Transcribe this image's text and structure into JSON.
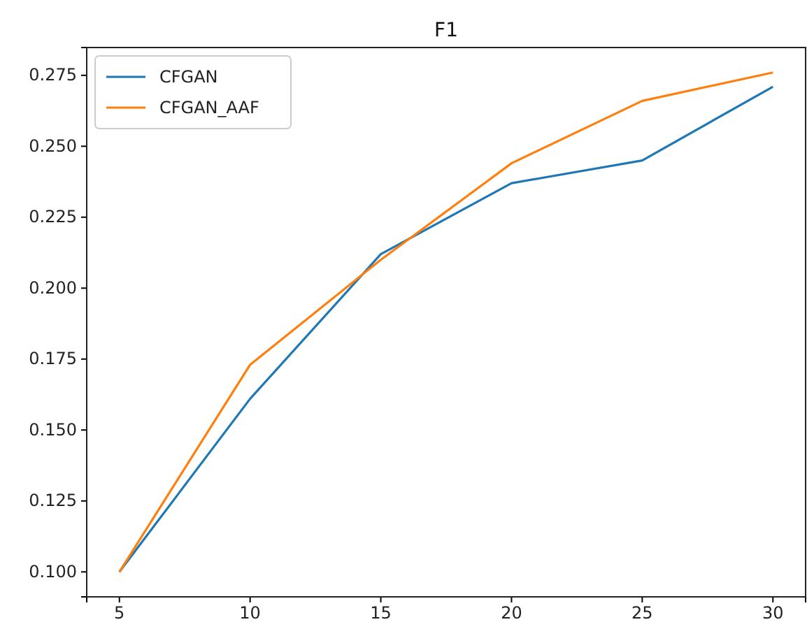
{
  "chart_data": {
    "type": "line",
    "title": "F1",
    "x": [
      5,
      10,
      15,
      20,
      25,
      30
    ],
    "series": [
      {
        "name": "CFGAN",
        "color": "#1f77b4",
        "values": [
          0.1,
          0.161,
          0.212,
          0.237,
          0.245,
          0.271
        ]
      },
      {
        "name": "CFGAN_AAF",
        "color": "#ff7f0e",
        "values": [
          0.1,
          0.173,
          0.21,
          0.244,
          0.266,
          0.276
        ]
      }
    ],
    "xlim": [
      3.75,
      31.25
    ],
    "xticks": [
      5,
      10,
      15,
      20,
      25,
      30
    ],
    "ylim": [
      0.0912,
      0.2848
    ],
    "yticks": [
      {
        "value": 0.1,
        "label": "0.100"
      },
      {
        "value": 0.125,
        "label": "0.125"
      },
      {
        "value": 0.15,
        "label": "0.150"
      },
      {
        "value": 0.175,
        "label": "0.175"
      },
      {
        "value": 0.2,
        "label": "0.200"
      },
      {
        "value": 0.225,
        "label": "0.225"
      },
      {
        "value": 0.25,
        "label": "0.250"
      },
      {
        "value": 0.275,
        "label": "0.275"
      }
    ],
    "grid": false,
    "legend": "top left",
    "marker": "none",
    "line_style": "solid"
  }
}
